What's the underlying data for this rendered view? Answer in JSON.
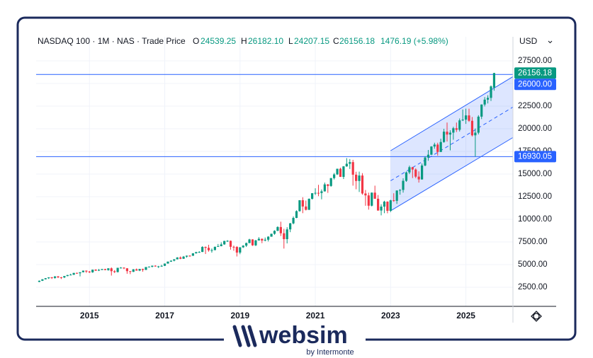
{
  "chart_data": {
    "type": "candlestick",
    "header": "NASDAQ 100 · 1M · NAS · Trade Price",
    "ohlc_labels": [
      "O",
      "H",
      "L",
      "C"
    ],
    "header_value_labels": [
      "24539.25",
      "26182.10",
      "24207.15",
      "26156.18"
    ],
    "change": 1476.19,
    "change_label": "1476.19 (+5.98%)",
    "currency": "USD",
    "up_color": "#089981",
    "down_color": "#f23645",
    "grid": true,
    "ylim": [
      390,
      30160
    ],
    "yticks": [
      {
        "value": 2500,
        "label": "2500.00"
      },
      {
        "value": 5000,
        "label": "5000.00"
      },
      {
        "value": 7500,
        "label": "7500.00"
      },
      {
        "value": 10000,
        "label": "10000.00"
      },
      {
        "value": 12500,
        "label": "12500.00"
      },
      {
        "value": 15000,
        "label": "15000.00"
      },
      {
        "value": 17500,
        "label": "17500.00"
      },
      {
        "value": 20000,
        "label": "20000.00"
      },
      {
        "value": 22500,
        "label": "22500.00"
      },
      {
        "value": 25000,
        "label": "25000.00"
      },
      {
        "value": 27500,
        "label": "27500.00"
      }
    ],
    "categories": [
      null,
      null,
      null,
      null,
      null,
      null,
      null,
      null,
      null,
      null,
      null,
      null,
      null,
      null,
      null,
      null,
      "2015",
      null,
      null,
      null,
      null,
      null,
      null,
      null,
      null,
      null,
      null,
      null,
      null,
      null,
      null,
      null,
      null,
      null,
      null,
      null,
      null,
      null,
      null,
      null,
      "2017",
      null,
      null,
      null,
      null,
      null,
      null,
      null,
      null,
      null,
      null,
      null,
      null,
      null,
      null,
      null,
      null,
      null,
      null,
      null,
      null,
      null,
      null,
      null,
      "2019",
      null,
      null,
      null,
      null,
      null,
      null,
      null,
      null,
      null,
      null,
      null,
      null,
      null,
      null,
      null,
      null,
      null,
      null,
      null,
      null,
      null,
      null,
      null,
      "2021",
      null,
      null,
      null,
      null,
      null,
      null,
      null,
      null,
      null,
      null,
      null,
      null,
      null,
      null,
      null,
      null,
      null,
      null,
      null,
      null,
      null,
      null,
      null,
      "2023",
      null,
      null,
      null,
      null,
      null,
      null,
      null,
      null,
      null,
      null,
      null,
      null,
      null,
      null,
      null,
      null,
      null,
      null,
      null,
      null,
      null,
      null,
      null,
      "2025",
      null,
      null,
      null,
      null,
      null,
      null,
      null,
      null,
      null
    ],
    "open": [
      3090,
      3218,
      3378,
      3498,
      3592,
      3527,
      3697,
      3596,
      3585,
      3736,
      3850,
      3887,
      4082,
      4049,
      4159,
      4337,
      4236,
      4149,
      4444,
      4334,
      4414,
      4508,
      4397,
      4588,
      4274,
      4181,
      4648,
      4664,
      4593,
      4280,
      4202,
      4483,
      4341,
      4523,
      4418,
      4730,
      4771,
      4875,
      4801,
      4810,
      4863,
      5117,
      5330,
      5436,
      5584,
      5788,
      5647,
      5880,
      5988,
      5980,
      6248,
      6374,
      6396,
      6950,
      6854,
      6581,
      6605,
      6967,
      7040,
      7232,
      7614,
      7628,
      6967,
      6949,
      6330,
      6907,
      7096,
      7378,
      7781,
      7127,
      7671,
      7848,
      7663,
      7750,
      8083,
      8403,
      8733,
      9150,
      8462,
      7813,
      8890,
      9555,
      10156,
      10905,
      12110,
      11418,
      11052,
      12268,
      12888,
      12925,
      12909,
      13091,
      13860,
      13686,
      14554,
      14959,
      15582,
      14690,
      15850,
      16135,
      16320,
      14930,
      14238,
      14839,
      12855,
      12643,
      11504,
      12948,
      12273,
      10972,
      11406,
      11952,
      10940,
      12102,
      12042,
      13181,
      13246,
      14254,
      15179,
      15758,
      15501,
      14715,
      14410,
      15947,
      16826,
      17137,
      18044,
      18255,
      17441,
      18537,
      19683,
      19363,
      19575,
      20061,
      19890,
      20930,
      21012,
      21478,
      20884,
      19279,
      19571,
      21340,
      22679,
      23218,
      23415,
      24539.25
    ],
    "high": [
      3240,
      3390,
      3510,
      3600,
      3630,
      3720,
      3740,
      3630,
      3740,
      3860,
      3990,
      4090,
      4120,
      4160,
      4340,
      4350,
      4300,
      4450,
      4490,
      4520,
      4530,
      4540,
      4600,
      4690,
      4390,
      4650,
      4720,
      4700,
      4600,
      4290,
      4500,
      4570,
      4530,
      4550,
      4740,
      4800,
      4900,
      4930,
      4860,
      4970,
      5120,
      5340,
      5460,
      5610,
      5820,
      5900,
      5950,
      6000,
      6030,
      6260,
      6420,
      6480,
      7030,
      7000,
      7190,
      6780,
      6990,
      7280,
      7460,
      7630,
      7700,
      7660,
      7100,
      7040,
      6940,
      7140,
      7430,
      7850,
      7800,
      7730,
      8030,
      7880,
      7990,
      8140,
      8420,
      8790,
      9230,
      9740,
      8950,
      9130,
      9610,
      10320,
      10990,
      12120,
      12440,
      12070,
      12310,
      12890,
      13430,
      13810,
      13300,
      14060,
      13900,
      14570,
      15120,
      15600,
      15700,
      15880,
      16760,
      16660,
      16570,
      15260,
      15270,
      15100,
      13240,
      12950,
      12970,
      13720,
      12690,
      11660,
      12050,
      11990,
      12160,
      12880,
      13200,
      13330,
      14530,
      15280,
      15930,
      15800,
      15630,
      15300,
      16170,
      16970,
      17660,
      18080,
      18460,
      18460,
      18910,
      20000,
      20690,
      19840,
      20220,
      20690,
      21140,
      22130,
      22220,
      22220,
      21300,
      20040,
      21500,
      22700,
      23500,
      23700,
      24790,
      26182.1
    ],
    "low": [
      3070,
      3190,
      3360,
      3420,
      3420,
      3450,
      3510,
      3410,
      3510,
      3710,
      3830,
      3850,
      3990,
      3700,
      4140,
      4090,
      4070,
      4100,
      4300,
      4290,
      4390,
      4380,
      4330,
      3790,
      4070,
      4130,
      4580,
      4500,
      3990,
      3950,
      4180,
      4330,
      4280,
      4210,
      4400,
      4700,
      4690,
      4770,
      4630,
      4760,
      4850,
      5100,
      5300,
      5360,
      5570,
      5600,
      5630,
      5770,
      5880,
      5960,
      6210,
      6300,
      6390,
      6170,
      6430,
      6320,
      6570,
      6960,
      7020,
      7190,
      7500,
      6650,
      6530,
      5900,
      6150,
      6840,
      6950,
      7370,
      7070,
      7050,
      7650,
      7370,
      7570,
      7560,
      8080,
      8300,
      8700,
      8160,
      6770,
      7340,
      8580,
      9450,
      10130,
      10850,
      10680,
      10980,
      11040,
      12180,
      12690,
      12560,
      12210,
      13060,
      12920,
      13600,
      14400,
      14900,
      14680,
      14450,
      15800,
      15560,
      13720,
      13320,
      13020,
      12720,
      11500,
      11070,
      11430,
      12270,
      10960,
      10440,
      10680,
      10670,
      10800,
      11940,
      11700,
      12720,
      12950,
      14140,
      15000,
      14560,
      14550,
      14060,
      14380,
      15860,
      16470,
      17120,
      17800,
      17040,
      17430,
      18460,
      18590,
      17620,
      18790,
      19640,
      19700,
      20850,
      20540,
      20760,
      19150,
      16930,
      19380,
      21070,
      22470,
      22800,
      23070,
      24207.15
    ],
    "close": [
      3218,
      3378,
      3498,
      3592,
      3527,
      3697,
      3596,
      3585,
      3736,
      3850,
      3887,
      4082,
      4049,
      4159,
      4337,
      4236,
      4149,
      4444,
      4334,
      4414,
      4508,
      4397,
      4588,
      4274,
      4181,
      4648,
      4664,
      4593,
      4280,
      4202,
      4483,
      4341,
      4523,
      4418,
      4730,
      4771,
      4875,
      4801,
      4810,
      4863,
      5117,
      5330,
      5436,
      5584,
      5788,
      5647,
      5880,
      5988,
      5980,
      6248,
      6374,
      6396,
      6950,
      6854,
      6581,
      6605,
      6967,
      7040,
      7232,
      7614,
      7628,
      6967,
      6949,
      6330,
      6907,
      7096,
      7378,
      7781,
      7127,
      7671,
      7848,
      7663,
      7750,
      8083,
      8403,
      8733,
      9150,
      8462,
      7813,
      8890,
      9555,
      10156,
      10905,
      12110,
      11418,
      11052,
      12268,
      12888,
      12925,
      12909,
      13091,
      13860,
      13686,
      14554,
      14959,
      15582,
      14690,
      15850,
      16135,
      16320,
      14930,
      14238,
      14839,
      12855,
      12643,
      11504,
      12948,
      12273,
      10972,
      11406,
      11952,
      10940,
      12102,
      12042,
      13181,
      13246,
      14254,
      15179,
      15758,
      15501,
      14715,
      14410,
      15947,
      16826,
      17137,
      18044,
      18255,
      17441,
      18537,
      19683,
      19363,
      19575,
      20061,
      19890,
      20930,
      21012,
      21478,
      20884,
      19279,
      19571,
      21340,
      22679,
      23218,
      23415,
      24680,
      26156.18
    ],
    "hlines": {
      "values": [
        26000,
        16930.05
      ],
      "value_labels": [
        "26000.00",
        "16930.05"
      ],
      "color": "#2962ff"
    },
    "channel": {
      "from": "2023",
      "upper": [
        17580,
        24500
      ],
      "lower": [
        10940,
        17790
      ],
      "color": "#2962ff"
    }
  },
  "footer": {
    "brand": "websim",
    "by": "by Intermonte"
  }
}
